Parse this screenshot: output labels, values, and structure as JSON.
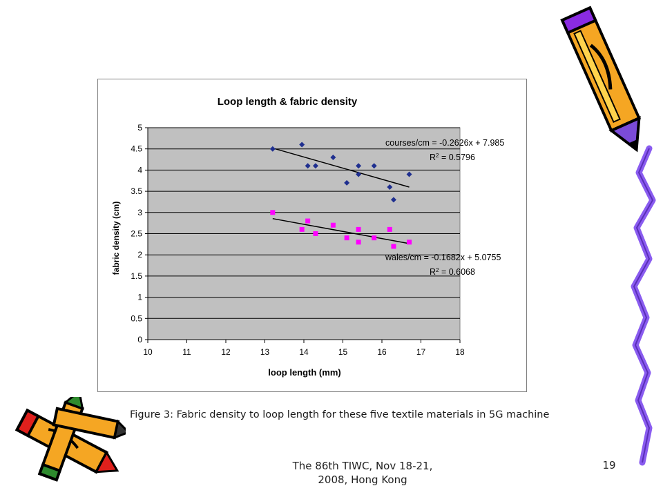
{
  "chart_data": {
    "type": "scatter",
    "title": "Loop length & fabric density",
    "xlabel": "loop length (mm)",
    "ylabel": "fabric density (cm)",
    "xlim": [
      10,
      18
    ],
    "ylim": [
      0,
      5
    ],
    "x_ticks": [
      "10",
      "11",
      "12",
      "13",
      "14",
      "15",
      "16",
      "17",
      "18"
    ],
    "y_ticks": [
      "0",
      "0.5",
      "1",
      "1.5",
      "2",
      "2.5",
      "3",
      "3.5",
      "4",
      "4.5",
      "5"
    ],
    "grid": "horizontal",
    "plot_background": "#c0c0c0",
    "series": [
      {
        "color": "#1f2f8f",
        "marker": "diamond",
        "points": [
          [
            13.2,
            4.5
          ],
          [
            13.95,
            4.6
          ],
          [
            14.1,
            4.1
          ],
          [
            14.3,
            4.1
          ],
          [
            14.75,
            4.3
          ],
          [
            15.1,
            3.7
          ],
          [
            15.4,
            3.9
          ],
          [
            15.4,
            4.1
          ],
          [
            15.8,
            4.1
          ],
          [
            16.2,
            3.6
          ],
          [
            16.3,
            3.3
          ],
          [
            16.7,
            3.9
          ]
        ],
        "trendline": {
          "slope": -0.2626,
          "intercept": 7.985,
          "x_range": [
            13.2,
            16.7
          ],
          "equation": "courses/cm = -0.2626x + 7.985",
          "r2_prefix": "R",
          "r2_sup": "2",
          "r2_value": " = 0.5796"
        }
      },
      {
        "color": "#ff00ff",
        "marker": "square",
        "points": [
          [
            13.2,
            3.0
          ],
          [
            13.95,
            2.6
          ],
          [
            14.1,
            2.8
          ],
          [
            14.3,
            2.5
          ],
          [
            14.75,
            2.7
          ],
          [
            15.1,
            2.4
          ],
          [
            15.4,
            2.6
          ],
          [
            15.4,
            2.3
          ],
          [
            15.8,
            2.4
          ],
          [
            16.2,
            2.6
          ],
          [
            16.3,
            2.2
          ],
          [
            16.7,
            2.3
          ]
        ],
        "trendline": {
          "slope": -0.1682,
          "intercept": 5.0755,
          "x_range": [
            13.2,
            16.7
          ],
          "equation": "wales/cm = -0.1682x + 5.0755",
          "r2_prefix": "R",
          "r2_sup": "2",
          "r2_value": " = 0.6068"
        }
      }
    ]
  },
  "caption": "Figure 3: Fabric density to loop length for these five textile materials in 5G machine",
  "footer": {
    "line1": "The 86th TIWC, Nov 18-21,",
    "line2": "2008, Hong Kong",
    "page_number": "19"
  },
  "decorations": {
    "clipart": [
      "pencil-icon",
      "crayon-icon",
      "squiggle-line-icon"
    ]
  }
}
